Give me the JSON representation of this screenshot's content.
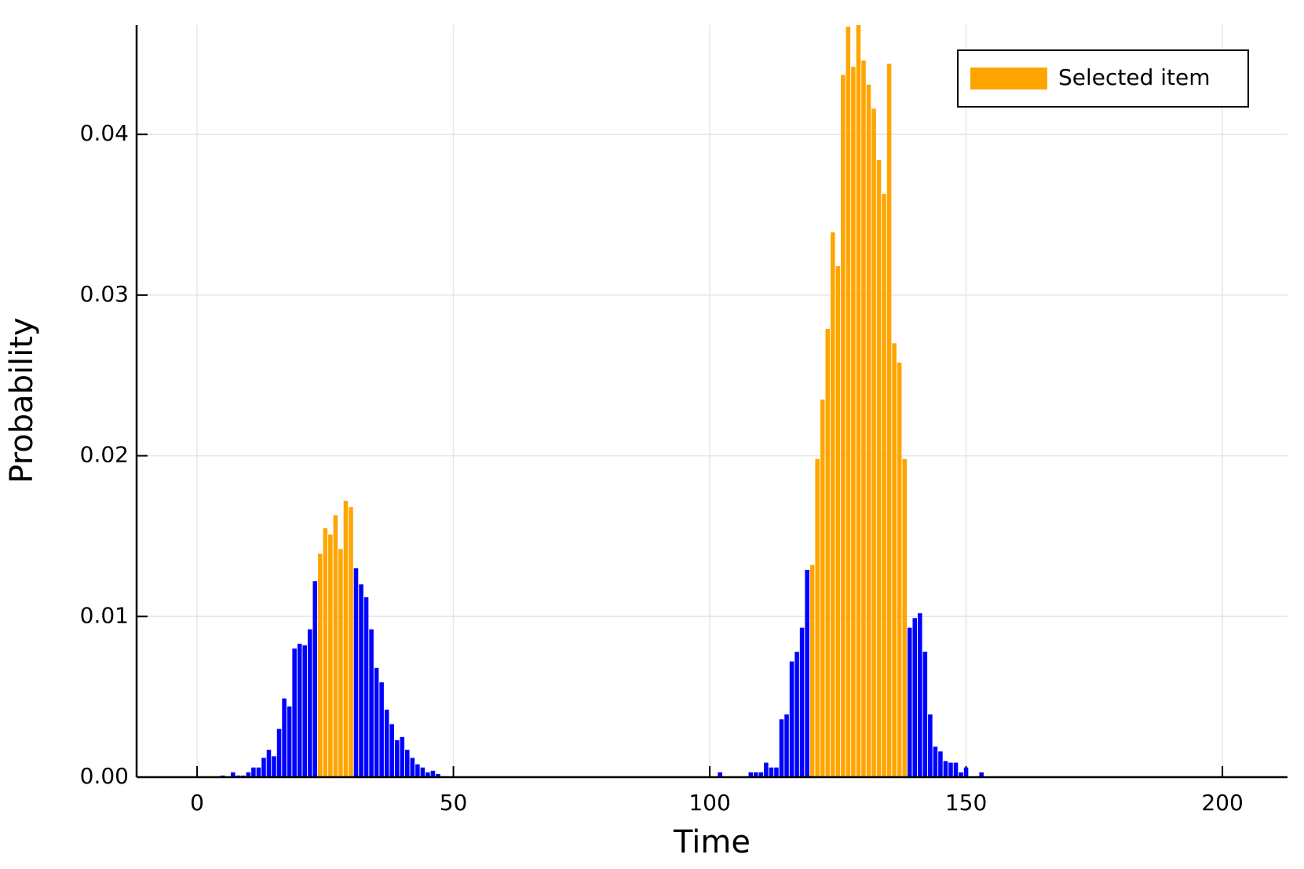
{
  "chart_data": {
    "type": "bar",
    "xlabel": "Time",
    "ylabel": "Probability",
    "xlim": [
      -11.8,
      212.7
    ],
    "ylim": [
      0,
      0.0468
    ],
    "xticks": [
      0,
      50,
      100,
      150,
      200
    ],
    "yticks": [
      {
        "value": 0,
        "label": "0.00"
      },
      0.01,
      0.02,
      0.03,
      0.04
    ],
    "grid": true,
    "legend": "top-right",
    "series": [
      {
        "color": "#0000ff",
        "x": [
          5,
          7,
          8,
          9,
          10,
          11,
          12,
          13,
          14,
          15,
          16,
          17,
          18,
          19,
          20,
          21,
          22,
          23,
          31,
          32,
          33,
          34,
          35,
          36,
          37,
          38,
          39,
          40,
          41,
          42,
          43,
          44,
          45,
          46,
          47,
          102,
          108,
          109,
          110,
          111,
          112,
          113,
          114,
          115,
          116,
          117,
          118,
          119,
          139,
          140,
          141,
          142,
          143,
          144,
          145,
          146,
          147,
          148,
          149,
          150,
          153
        ],
        "values": [
          0.0001,
          0.0003,
          0.0001,
          0.0001,
          0.0003,
          0.0006,
          0.0006,
          0.0012,
          0.0017,
          0.0013,
          0.003,
          0.0049,
          0.0044,
          0.008,
          0.0083,
          0.0082,
          0.0092,
          0.0122,
          0.013,
          0.012,
          0.0112,
          0.0092,
          0.0068,
          0.0059,
          0.0042,
          0.0033,
          0.0023,
          0.0025,
          0.0017,
          0.0012,
          0.0008,
          0.0006,
          0.0003,
          0.0004,
          0.0002,
          0.0003,
          0.0003,
          0.0003,
          0.0003,
          0.0009,
          0.0006,
          0.0006,
          0.0036,
          0.0039,
          0.0072,
          0.0078,
          0.0093,
          0.0129,
          0.0093,
          0.0099,
          0.0102,
          0.0078,
          0.0039,
          0.0019,
          0.0016,
          0.001,
          0.0009,
          0.0009,
          0.0003,
          0.0006,
          0.0003
        ]
      },
      {
        "name": "Selected item",
        "color": "#ffa500",
        "x": [
          24,
          25,
          26,
          27,
          28,
          29,
          30,
          120,
          121,
          122,
          123,
          124,
          125,
          126,
          127,
          128,
          129,
          130,
          131,
          132,
          133,
          134,
          135,
          136,
          137,
          138
        ],
        "values": [
          0.0139,
          0.0155,
          0.0151,
          0.0163,
          0.0142,
          0.0172,
          0.0168,
          0.0132,
          0.0198,
          0.0235,
          0.0279,
          0.0339,
          0.0318,
          0.0437,
          0.0467,
          0.0442,
          0.0468,
          0.0446,
          0.0431,
          0.0416,
          0.0384,
          0.0363,
          0.0444,
          0.027,
          0.0258,
          0.0198
        ]
      }
    ]
  }
}
